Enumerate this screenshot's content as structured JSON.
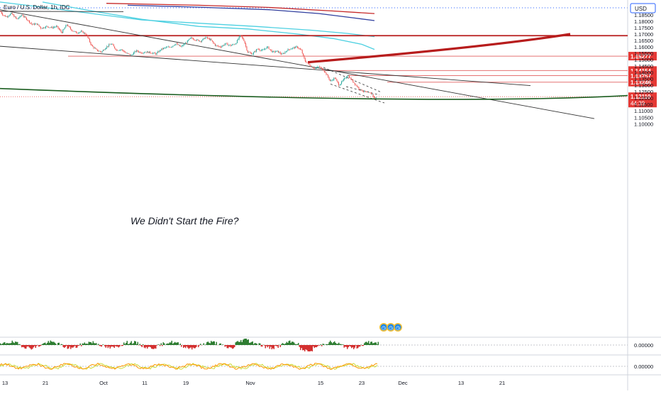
{
  "header": {
    "symbol_title": "Euro / U.S. Dollar, 1h, IDC",
    "currency_label": "USD"
  },
  "annotation_text": "We Didn't Start the Fire?",
  "colors": {
    "candle_up": "#26a69a",
    "candle_down": "#ef5350",
    "level_line": "#e57373",
    "level_tag_bg": "#e53935",
    "thick_red_line": "#b71c1c",
    "green_curve": "#1b5e20",
    "ma_teal": "#4dd0e1",
    "ma_navy": "#303f9f",
    "ma_red": "#c62828",
    "trendline": "#333333",
    "osc_green": "#2e7d32",
    "osc_red": "#d32f2f",
    "osc_line_yellow": "#cddc39",
    "osc_line_orange": "#ff9800",
    "time_icon_blue": "#1e88e5",
    "time_icon_ring": "#fbc02d"
  },
  "time_icon_glyphs": [
    "◷",
    "◷",
    "◷"
  ],
  "chart_data": {
    "type": "candlestick",
    "instrument": "Euro / U.S. Dollar",
    "interval": "1h",
    "source": "IDC",
    "currency": "USD",
    "y_range": [
      1.1,
      1.1905
    ],
    "y_ticks": [
      "1.18500",
      "1.18000",
      "1.17500",
      "1.17000",
      "1.16500",
      "1.16000",
      "1.15500",
      "1.15000",
      "1.14500",
      "1.14000",
      "1.13500",
      "1.13000",
      "1.12500",
      "1.12000",
      "1.11500",
      "1.11000",
      "1.10500",
      "1.10000"
    ],
    "x_tick_labels": [
      "13",
      "21",
      "Oct",
      "11",
      "19",
      "Nov",
      "15",
      "23",
      "Dec",
      "13",
      "21"
    ],
    "price_path": [
      [
        0,
        1.188
      ],
      [
        4,
        1.185
      ],
      [
        9,
        1.1835
      ],
      [
        16,
        1.186
      ],
      [
        24,
        1.1815
      ],
      [
        31,
        1.185
      ],
      [
        38,
        1.1815
      ],
      [
        45,
        1.1775
      ],
      [
        52,
        1.178
      ],
      [
        58,
        1.1745
      ],
      [
        66,
        1.176
      ],
      [
        73,
        1.175
      ],
      [
        80,
        1.176
      ],
      [
        87,
        1.171
      ],
      [
        94,
        1.1775
      ],
      [
        101,
        1.173
      ],
      [
        108,
        1.171
      ],
      [
        115,
        1.172
      ],
      [
        122,
        1.1695
      ],
      [
        129,
        1.161
      ],
      [
        136,
        1.1575
      ],
      [
        143,
        1.156
      ],
      [
        150,
        1.16
      ],
      [
        157,
        1.1625
      ],
      [
        164,
        1.1575
      ],
      [
        171,
        1.158
      ],
      [
        178,
        1.155
      ],
      [
        185,
        1.1535
      ],
      [
        192,
        1.157
      ],
      [
        199,
        1.1555
      ],
      [
        206,
        1.156
      ],
      [
        213,
        1.1555
      ],
      [
        220,
        1.1545
      ],
      [
        227,
        1.158
      ],
      [
        234,
        1.1595
      ],
      [
        241,
        1.16
      ],
      [
        248,
        1.1625
      ],
      [
        255,
        1.16
      ],
      [
        262,
        1.163
      ],
      [
        269,
        1.167
      ],
      [
        276,
        1.1655
      ],
      [
        283,
        1.1645
      ],
      [
        290,
        1.1675
      ],
      [
        297,
        1.1655
      ],
      [
        304,
        1.161
      ],
      [
        311,
        1.16
      ],
      [
        318,
        1.1625
      ],
      [
        325,
        1.161
      ],
      [
        332,
        1.1625
      ],
      [
        339,
        1.169
      ],
      [
        344,
        1.165
      ],
      [
        349,
        1.156
      ],
      [
        356,
        1.1545
      ],
      [
        363,
        1.1585
      ],
      [
        370,
        1.157
      ],
      [
        377,
        1.16
      ],
      [
        384,
        1.156
      ],
      [
        391,
        1.1565
      ],
      [
        398,
        1.154
      ],
      [
        405,
        1.1575
      ],
      [
        412,
        1.159
      ],
      [
        419,
        1.16
      ],
      [
        425,
        1.157
      ],
      [
        430,
        1.149
      ],
      [
        436,
        1.146
      ],
      [
        443,
        1.143
      ],
      [
        450,
        1.1445
      ],
      [
        456,
        1.142
      ],
      [
        461,
        1.138
      ],
      [
        466,
        1.133
      ],
      [
        472,
        1.136
      ],
      [
        478,
        1.13
      ],
      [
        484,
        1.134
      ],
      [
        490,
        1.138
      ],
      [
        496,
        1.134
      ],
      [
        502,
        1.13
      ],
      [
        508,
        1.1265
      ],
      [
        514,
        1.125
      ],
      [
        520,
        1.124
      ],
      [
        525,
        1.123
      ],
      [
        528,
        1.1195
      ],
      [
        531,
        1.1211
      ]
    ],
    "last_price": "1.12110",
    "countdown": "44:39",
    "horizontal_levels": [
      {
        "price": 1.15277,
        "label": "1.15277"
      },
      {
        "price": 1.14154,
        "label": "1.14154"
      },
      {
        "price": 1.13757,
        "label": "1.13757"
      },
      {
        "price": 1.13246,
        "label": "1.13246"
      }
    ],
    "resistance_level": 1.16875,
    "moving_averages": [
      {
        "color": "ma_teal",
        "points": [
          [
            0,
            1.195
          ],
          [
            60,
            1.191
          ],
          [
            130,
            1.186
          ],
          [
            200,
            1.181
          ],
          [
            280,
            1.1785
          ],
          [
            360,
            1.176
          ],
          [
            440,
            1.173
          ],
          [
            490,
            1.1705
          ],
          [
            528,
            1.168
          ]
        ]
      },
      {
        "color": "ma_teal",
        "points": [
          [
            60,
            1.195
          ],
          [
            130,
            1.188
          ],
          [
            200,
            1.1815
          ],
          [
            280,
            1.176
          ],
          [
            350,
            1.174
          ],
          [
            420,
            1.17
          ],
          [
            470,
            1.1665
          ],
          [
            510,
            1.162
          ],
          [
            528,
            1.158
          ]
        ]
      },
      {
        "color": "ma_navy",
        "points": [
          [
            180,
            1.1925
          ],
          [
            280,
            1.191
          ],
          [
            380,
            1.189
          ],
          [
            450,
            1.186
          ],
          [
            500,
            1.1825
          ],
          [
            528,
            1.1805
          ]
        ]
      },
      {
        "color": "ma_red",
        "points": [
          [
            150,
            1.194
          ],
          [
            280,
            1.1925
          ],
          [
            380,
            1.1908
          ],
          [
            470,
            1.188
          ],
          [
            528,
            1.186
          ]
        ]
      }
    ],
    "trendlines": [
      {
        "points": [
          [
            0,
            1.1878
          ],
          [
            174,
            1.1875
          ]
        ]
      },
      {
        "points": [
          [
            0,
            1.189
          ],
          [
            838,
            1.104
          ]
        ]
      },
      {
        "points": [
          [
            0,
            1.1605
          ],
          [
            748,
            1.1298
          ]
        ]
      }
    ],
    "channel_lines": [
      {
        "points": [
          [
            456,
            1.144
          ],
          [
            538,
            1.1245
          ]
        ]
      },
      {
        "points": [
          [
            466,
            1.131
          ],
          [
            542,
            1.1162
          ]
        ]
      },
      {
        "points": [
          [
            488,
            1.129
          ],
          [
            535,
            1.1225
          ]
        ]
      }
    ],
    "curve_thick_red": {
      "start": [
        434,
        1.148
      ],
      "control": [
        690,
        1.16
      ],
      "end": [
        804,
        1.17
      ]
    },
    "curve_green": {
      "start": [
        0,
        1.1275
      ],
      "control": [
        620,
        1.114
      ],
      "end": [
        885,
        1.122
      ]
    },
    "oscillator_1": {
      "label": "0.00000"
    },
    "oscillator_2": {
      "label": "0.00000"
    }
  }
}
